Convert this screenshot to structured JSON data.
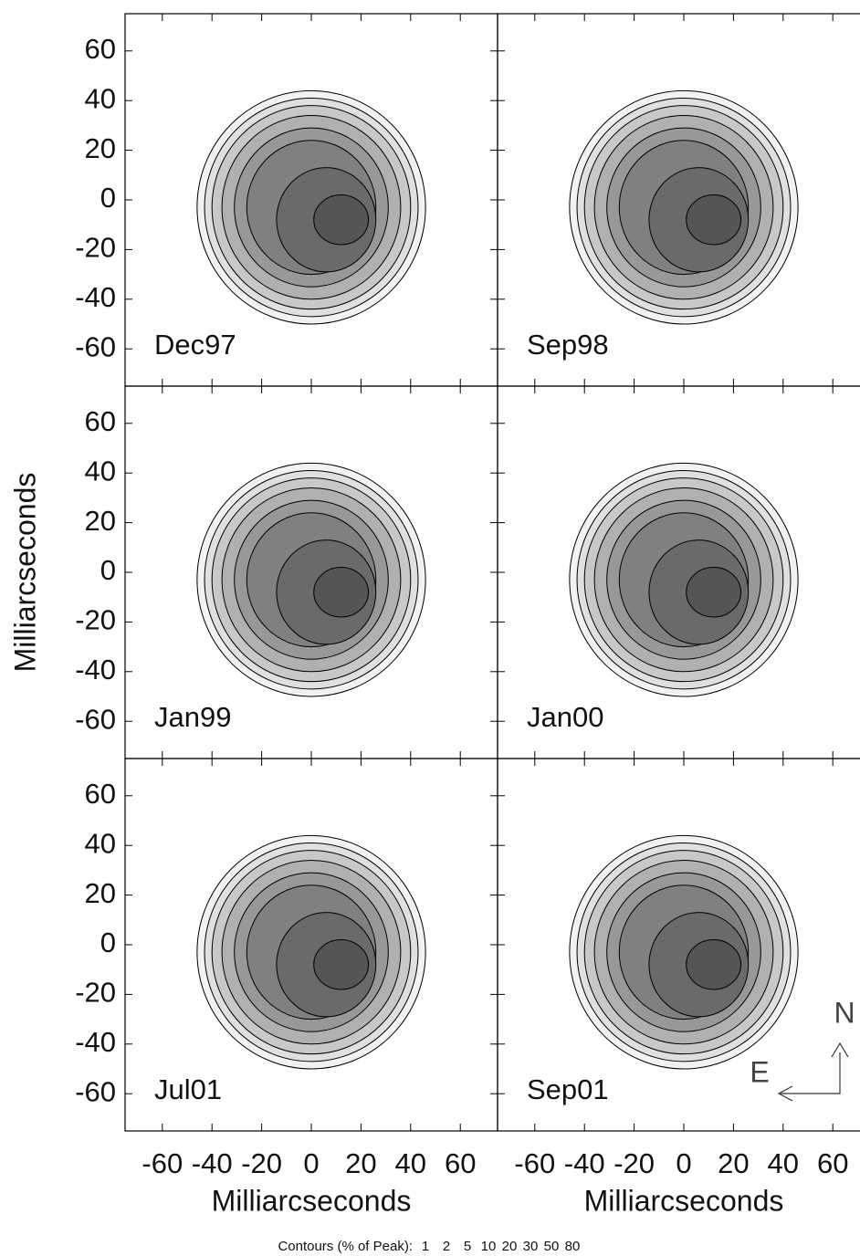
{
  "chart_data": [
    {
      "type": "contour",
      "label": "Dec97",
      "xlim": [
        -75,
        75
      ],
      "ylim": [
        -75,
        75
      ],
      "xticks": [
        -60,
        -40,
        -20,
        0,
        20,
        40,
        60
      ],
      "yticks": [
        -60,
        -40,
        -20,
        0,
        20,
        40,
        60
      ]
    },
    {
      "type": "contour",
      "label": "Sep98",
      "xlim": [
        -75,
        75
      ],
      "ylim": [
        -75,
        75
      ],
      "xticks": [
        -60,
        -40,
        -20,
        0,
        20,
        40,
        60
      ],
      "yticks": [
        -60,
        -40,
        -20,
        0,
        20,
        40,
        60
      ]
    },
    {
      "type": "contour",
      "label": "Jan99",
      "xlim": [
        -75,
        75
      ],
      "ylim": [
        -75,
        75
      ],
      "xticks": [
        -60,
        -40,
        -20,
        0,
        20,
        40,
        60
      ],
      "yticks": [
        -60,
        -40,
        -20,
        0,
        20,
        40,
        60
      ]
    },
    {
      "type": "contour",
      "label": "Jan00",
      "xlim": [
        -75,
        75
      ],
      "ylim": [
        -75,
        75
      ],
      "xticks": [
        -60,
        -40,
        -20,
        0,
        20,
        40,
        60
      ],
      "yticks": [
        -60,
        -40,
        -20,
        0,
        20,
        40,
        60
      ]
    },
    {
      "type": "contour",
      "label": "Jul01",
      "xlim": [
        -75,
        75
      ],
      "ylim": [
        -75,
        75
      ],
      "xticks": [
        -60,
        -40,
        -20,
        0,
        20,
        40,
        60
      ],
      "yticks": [
        -60,
        -40,
        -20,
        0,
        20,
        40,
        60
      ]
    },
    {
      "type": "contour",
      "label": "Sep01",
      "xlim": [
        -75,
        75
      ],
      "ylim": [
        -75,
        75
      ],
      "xticks": [
        -60,
        -40,
        -20,
        0,
        20,
        40,
        60
      ],
      "yticks": [
        -60,
        -40,
        -20,
        0,
        20,
        40,
        60
      ]
    }
  ],
  "x_label": "Milliarcseconds",
  "y_label": "Milliarcseconds",
  "contour_note": "Contours (% of Peak):",
  "contour_levels": [
    1,
    2,
    5,
    10,
    20,
    30,
    50,
    80
  ],
  "compass": {
    "north": "N",
    "east": "E"
  }
}
